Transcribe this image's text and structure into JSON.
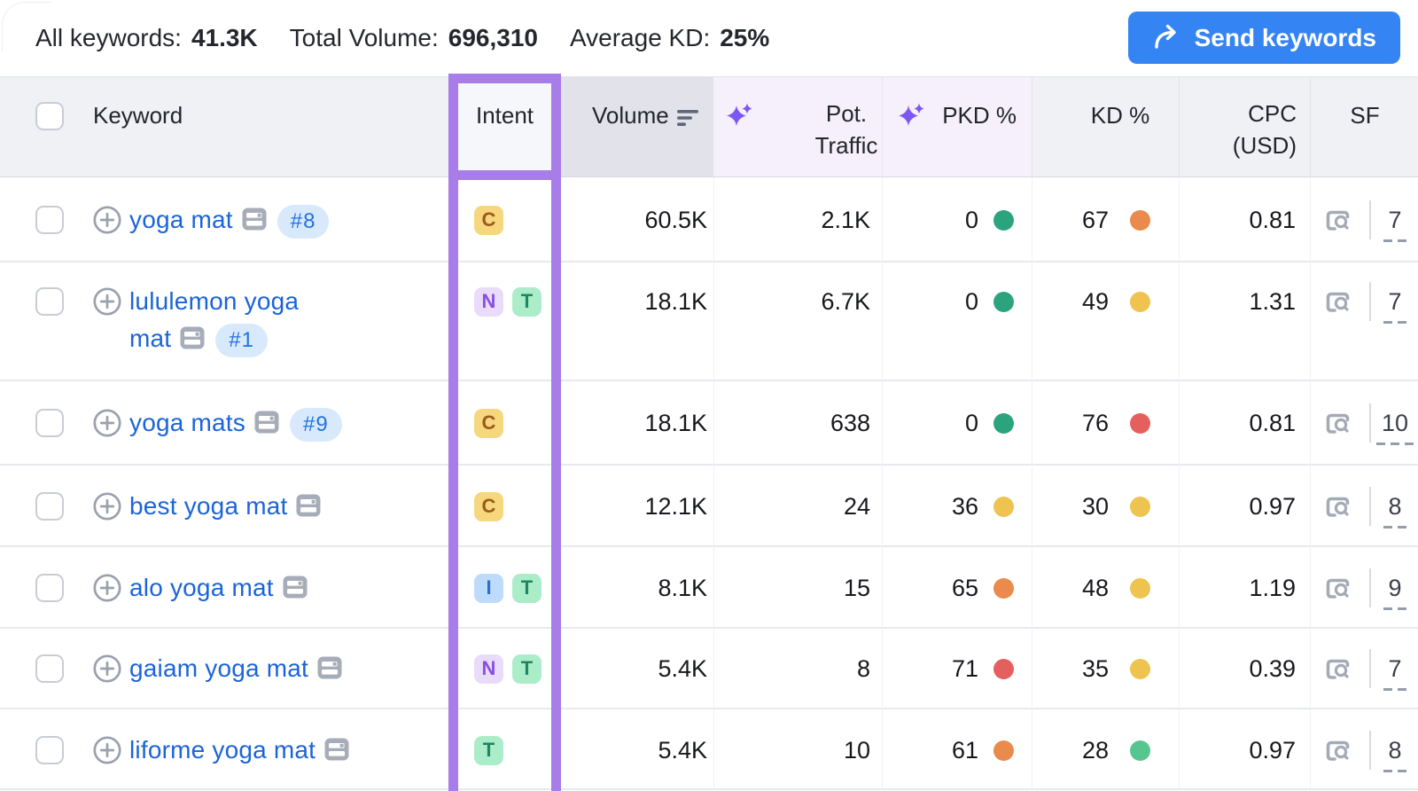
{
  "topbar": {
    "stats": [
      {
        "label": "All keywords:",
        "value": "41.3K"
      },
      {
        "label": "Total Volume:",
        "value": "696,310"
      },
      {
        "label": "Average KD:",
        "value": "25%"
      }
    ],
    "send_button": "Send keywords"
  },
  "table": {
    "headers": {
      "keyword": "Keyword",
      "intent": "Intent",
      "volume": "Volume",
      "pot_traffic_line1": "Pot.",
      "pot_traffic_line2": "Traffic",
      "pkd": "PKD %",
      "kd": "KD %",
      "cpc_line1": "CPC",
      "cpc_line2": "(USD)",
      "sf": "SF"
    },
    "rows": [
      {
        "keyword": "yoga mat",
        "rank": "#8",
        "intents": [
          "C"
        ],
        "volume": "60.5K",
        "pot_traffic": "2.1K",
        "pkd": "0",
        "pkd_level": "green",
        "kd": "67",
        "kd_level": "orange",
        "cpc": "0.81",
        "sf": "7"
      },
      {
        "keyword": "lululemon yoga mat",
        "rank": "#1",
        "intents": [
          "N",
          "T"
        ],
        "volume": "18.1K",
        "pot_traffic": "6.7K",
        "pkd": "0",
        "pkd_level": "green",
        "kd": "49",
        "kd_level": "yellow",
        "cpc": "1.31",
        "sf": "7"
      },
      {
        "keyword": "yoga mats",
        "rank": "#9",
        "intents": [
          "C"
        ],
        "volume": "18.1K",
        "pot_traffic": "638",
        "pkd": "0",
        "pkd_level": "green",
        "kd": "76",
        "kd_level": "red",
        "cpc": "0.81",
        "sf": "10"
      },
      {
        "keyword": "best yoga mat",
        "rank": null,
        "intents": [
          "C"
        ],
        "volume": "12.1K",
        "pot_traffic": "24",
        "pkd": "36",
        "pkd_level": "yellow",
        "kd": "30",
        "kd_level": "yellow",
        "cpc": "0.97",
        "sf": "8"
      },
      {
        "keyword": "alo yoga mat",
        "rank": null,
        "intents": [
          "I",
          "T"
        ],
        "volume": "8.1K",
        "pot_traffic": "15",
        "pkd": "65",
        "pkd_level": "orange",
        "kd": "48",
        "kd_level": "yellow",
        "cpc": "1.19",
        "sf": "9"
      },
      {
        "keyword": "gaiam yoga mat",
        "rank": null,
        "intents": [
          "N",
          "T"
        ],
        "volume": "5.4K",
        "pot_traffic": "8",
        "pkd": "71",
        "pkd_level": "red",
        "kd": "35",
        "kd_level": "yellow",
        "cpc": "0.39",
        "sf": "7"
      },
      {
        "keyword": "liforme yoga mat",
        "rank": null,
        "intents": [
          "T"
        ],
        "volume": "5.4K",
        "pot_traffic": "10",
        "pkd": "61",
        "pkd_level": "orange",
        "kd": "28",
        "kd_level": "green_light",
        "cpc": "0.97",
        "sf": "8"
      }
    ],
    "intent_styles": {
      "C": {
        "bg": "#f6d77e",
        "fg": "#9a5b1d"
      },
      "N": {
        "bg": "#e9dbfa",
        "fg": "#8a4fdf"
      },
      "T": {
        "bg": "#abedc9",
        "fg": "#1f8562"
      },
      "I": {
        "bg": "#bedbfb",
        "fg": "#2b6fd3"
      }
    },
    "dot_colors": {
      "green": "#2ba47d",
      "green_light": "#55c68e",
      "yellow": "#efc34f",
      "orange": "#ea8a4c",
      "red": "#e65f5f"
    },
    "accent": {
      "highlight_purple": "#a87ce9",
      "link_blue": "#1b64d8",
      "button_blue": "#3484f4"
    }
  }
}
